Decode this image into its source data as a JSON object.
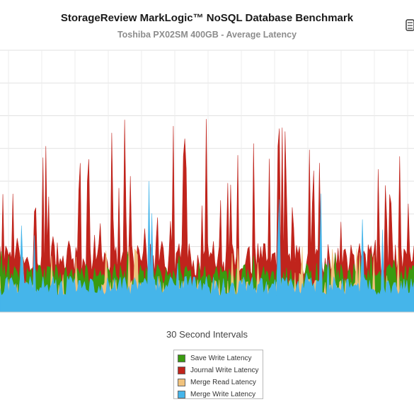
{
  "chart_data": {
    "type": "area",
    "title": "StorageReview MarkLogic™ NoSQL Database Benchmark",
    "subtitle": "Toshiba PX02SM 400GB - Average Latency",
    "xlabel": "30 Second Intervals",
    "ylabel": "",
    "grid": true,
    "legend_position": "bottom-center",
    "n_intervals": 290,
    "ylim": [
      0,
      8
    ],
    "series": [
      {
        "name": "Save Write Latency",
        "color": "#3a9b10",
        "baseline": 1.15,
        "variation": 0.35,
        "spike_level": 1.9
      },
      {
        "name": "Journal Write Latency",
        "color": "#c0241c",
        "baseline": 1.6,
        "variation": 0.5,
        "spike_level": 6.2
      },
      {
        "name": "Merge Read Latency",
        "color": "#f0c27d",
        "baseline": 0.5,
        "variation": 0.5,
        "spike_level": 2.0
      },
      {
        "name": "Merge Write Latency",
        "color": "#45b5ea",
        "baseline": 0.8,
        "variation": 0.3,
        "spike_level": 4.0
      }
    ]
  }
}
